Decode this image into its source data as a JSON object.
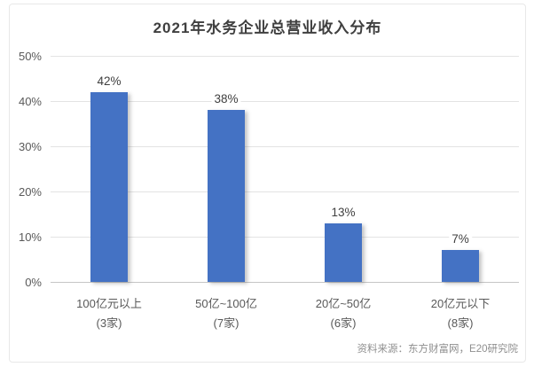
{
  "chart_data": {
    "type": "bar",
    "title": "2021年水务企业总营业收入分布",
    "categories": [
      "100亿元以上",
      "50亿~100亿",
      "20亿~50亿",
      "20亿元以下"
    ],
    "category_sublabels": [
      "(3家)",
      "(7家)",
      "(6家)",
      "(8家)"
    ],
    "values": [
      42,
      38,
      13,
      7
    ],
    "value_labels": [
      "42%",
      "38%",
      "13%",
      "7%"
    ],
    "xlabel": "",
    "ylabel": "",
    "ylim": [
      0,
      50
    ],
    "ytick_step": 10,
    "ytick_labels": [
      "0%",
      "10%",
      "20%",
      "30%",
      "40%",
      "50%"
    ],
    "grid": true,
    "legend_position": "none",
    "bar_color": "#4472c4",
    "source": "资料来源：东方财富网，E20研究院"
  }
}
